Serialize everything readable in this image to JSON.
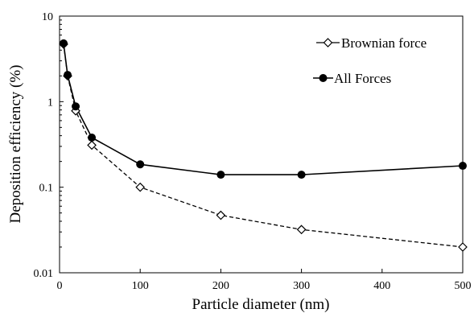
{
  "chart_data": {
    "type": "line",
    "title": "",
    "xlabel": "Particle diameter (nm)",
    "ylabel": "Deposition efficiency (%)",
    "xlim": [
      0,
      500
    ],
    "ylim": [
      0.01,
      10
    ],
    "yscale": "log",
    "grid": false,
    "legend_position": "top-right",
    "x_ticks": [
      "0",
      "100",
      "200",
      "300",
      "400",
      "500"
    ],
    "y_ticks": [
      "0.01",
      "0.1",
      "1",
      "10"
    ],
    "series": [
      {
        "name": "Brownian force",
        "style": "dashed",
        "marker": "open-diamond",
        "color": "#000000",
        "x": [
          5,
          10,
          20,
          40,
          100,
          200,
          300,
          500
        ],
        "y": [
          4.7,
          2.0,
          0.78,
          0.31,
          0.1,
          0.047,
          0.032,
          0.02
        ]
      },
      {
        "name": "All Forces",
        "style": "solid",
        "marker": "filled-circle",
        "color": "#000000",
        "x": [
          5,
          10,
          20,
          40,
          100,
          200,
          300,
          500
        ],
        "y": [
          4.8,
          2.05,
          0.88,
          0.38,
          0.185,
          0.14,
          0.14,
          0.178
        ]
      }
    ]
  }
}
